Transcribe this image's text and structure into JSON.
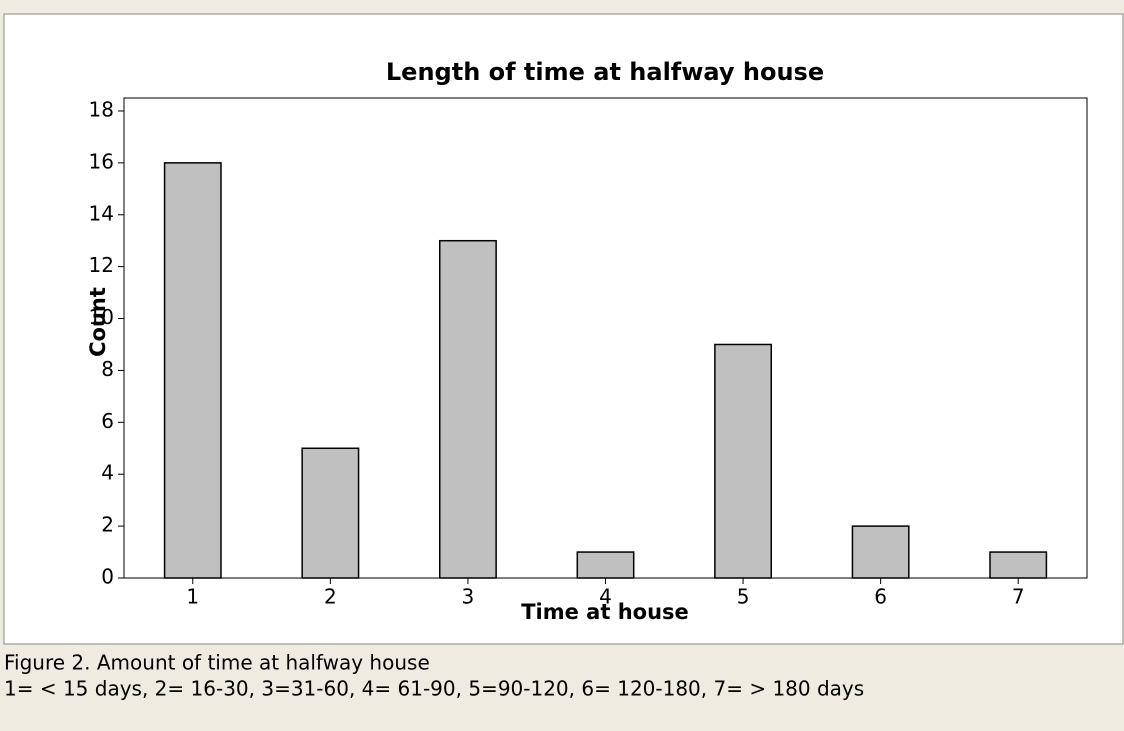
{
  "chart_data": {
    "type": "bar",
    "title": "Length of time at halfway house",
    "xlabel": "Time at house",
    "ylabel": "Count",
    "categories": [
      "1",
      "2",
      "3",
      "4",
      "5",
      "6",
      "7"
    ],
    "values": [
      16,
      5,
      13,
      1,
      9,
      2,
      1
    ],
    "color": "#c0c0c0",
    "ylim": [
      0,
      18.5
    ],
    "yticks": [
      0,
      2,
      4,
      6,
      8,
      10,
      12,
      14,
      16,
      18
    ],
    "grid": false,
    "caption": [
      "Figure 2. Amount of time at halfway house",
      "1= < 15 days, 2= 16-30, 3=31-60, 4= 61-90, 5=90-120, 6= 120-180, 7= > 180 days"
    ]
  }
}
